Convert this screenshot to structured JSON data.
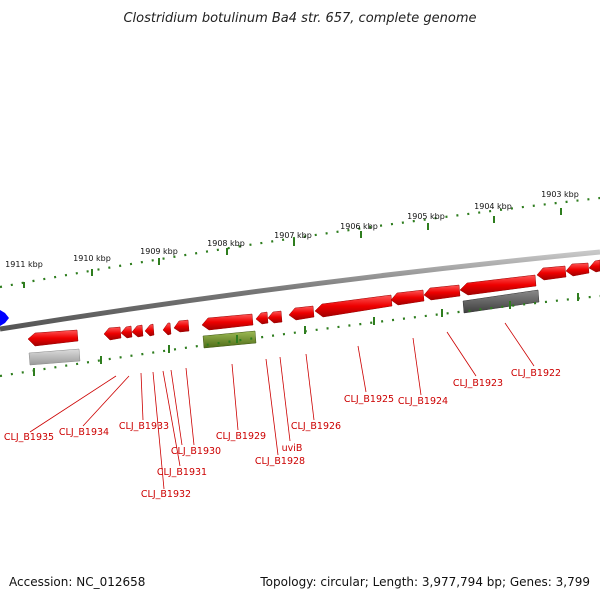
{
  "title": "Clostridium botulinum Ba4 str. 657, complete genome",
  "footer": {
    "accession": "Accession: NC_012658",
    "topology": "Topology: circular; Length: 3,977,794 bp; Genes: 3,799"
  },
  "scale_labels": [
    "1911 kbp",
    "1910 kbp",
    "1909 kbp",
    "1908 kbp",
    "1907 kbp",
    "1906 kbp",
    "1905 kbp",
    "1904 kbp",
    "1903 kbp"
  ],
  "gene_labels": [
    "CLJ_B1935",
    "CLJ_B1934",
    "CLJ_B1933",
    "CLJ_B1932",
    "CLJ_B1931",
    "CLJ_B1930",
    "CLJ_B1929",
    "CLJ_B1928",
    "uviB",
    "CLJ_B1926",
    "CLJ_B1925",
    "CLJ_B1924",
    "CLJ_B1923",
    "CLJ_B1922"
  ],
  "colors": {
    "gene_red": "#ee0000",
    "gene_green": "#6b8e23",
    "gene_dark": "#5a5a5a",
    "gene_light": "#b0b0b0",
    "backbone": "#888888",
    "scale": "#2e7d1e",
    "label": "#cc0000",
    "marker": "#0000ff"
  }
}
